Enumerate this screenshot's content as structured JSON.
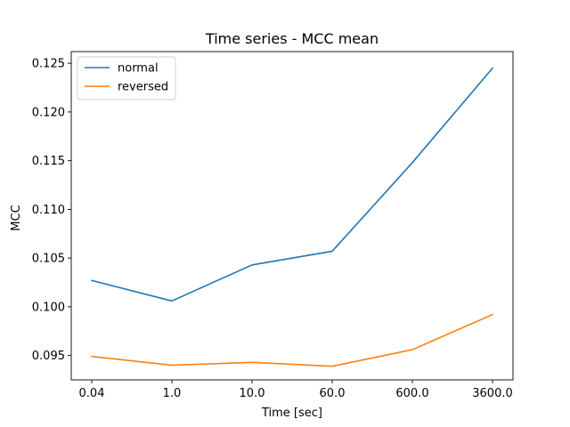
{
  "chart_data": {
    "type": "line",
    "title": "Time series - MCC mean",
    "xlabel": "Time [sec]",
    "ylabel": "MCC",
    "categories": [
      "0.04",
      "1.0",
      "10.0",
      "60.0",
      "600.0",
      "3600.0"
    ],
    "ylim": [
      0.0925,
      0.1262
    ],
    "yticks": [
      0.095,
      0.1,
      0.105,
      0.11,
      0.115,
      0.12,
      0.125
    ],
    "ytick_labels": [
      "0.095",
      "0.100",
      "0.105",
      "0.110",
      "0.115",
      "0.120",
      "0.125"
    ],
    "grid": false,
    "legend_position": "top-left",
    "series": [
      {
        "name": "normal",
        "color": "#1f77b4",
        "values": [
          0.1027,
          0.1006,
          0.1043,
          0.1057,
          0.1148,
          0.1245
        ]
      },
      {
        "name": "reversed",
        "color": "#ff7f0e",
        "values": [
          0.0949,
          0.094,
          0.0943,
          0.0939,
          0.0956,
          0.0992
        ]
      }
    ]
  }
}
